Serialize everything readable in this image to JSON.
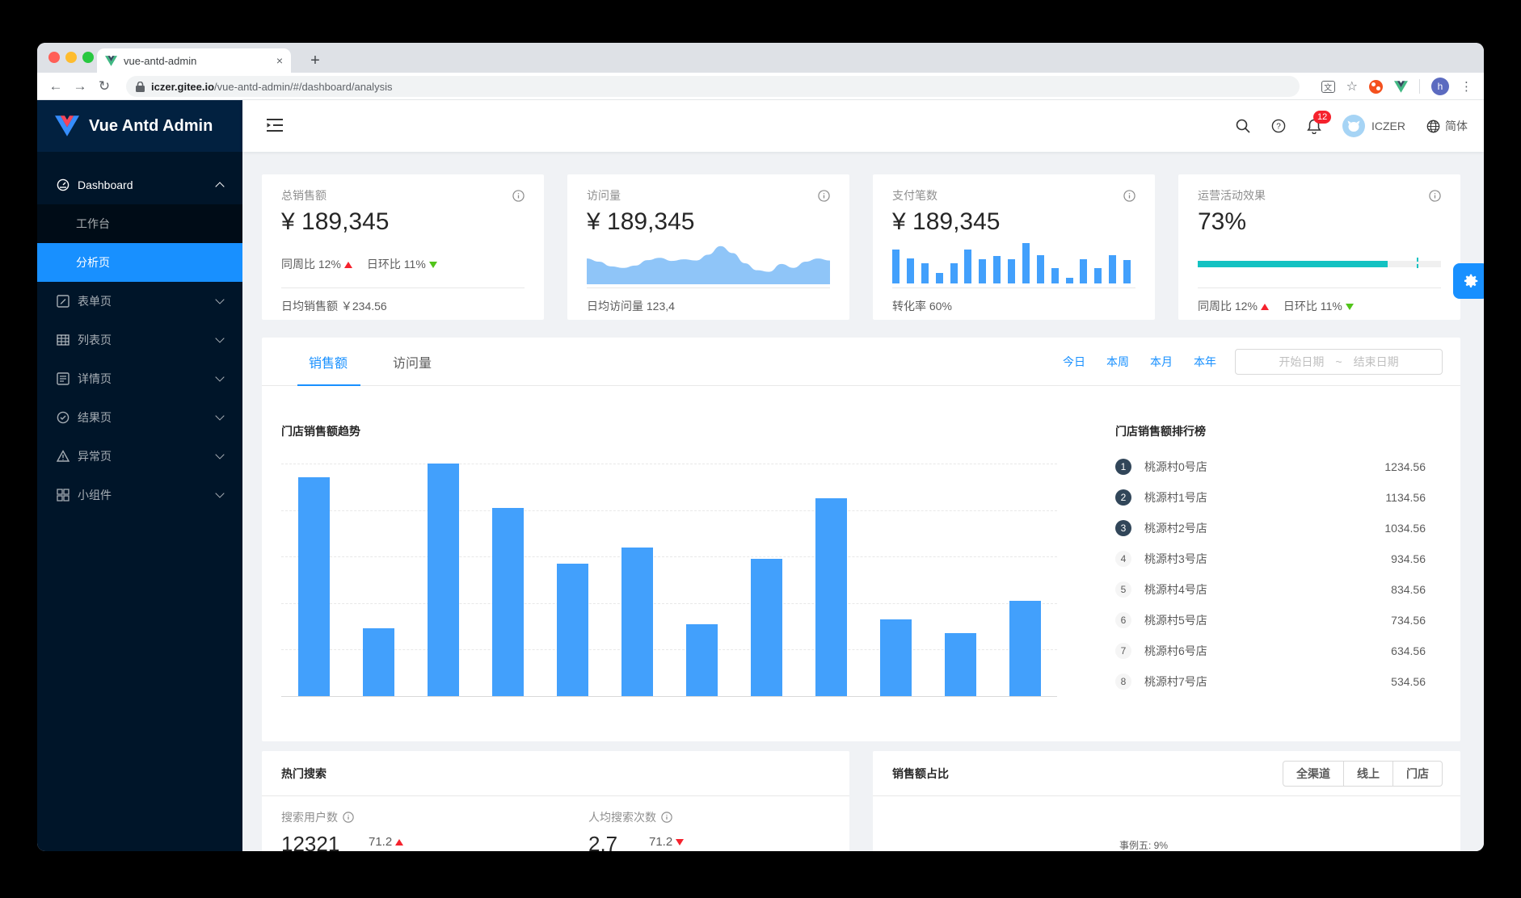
{
  "colors": {
    "accent": "#1890ff",
    "bar_blue": "#42a0fc",
    "area_blue": "#8fc5f8",
    "teal": "#13c2c2",
    "red": "#f5222d",
    "green": "#52c41a",
    "sidebar_bg": "#001529",
    "rank_badge_dark": "#314659"
  },
  "browser": {
    "tab_title": "vue-antd-admin",
    "tab_close": "×",
    "new_tab": "+",
    "nav_back": "←",
    "nav_forward": "→",
    "nav_reload": "↻",
    "url_host": "iczer.gitee.io",
    "url_path": "/vue-antd-admin/#/dashboard/analysis",
    "bookmark_star": "☆",
    "translate_glyph": "文",
    "profile_initial": "h",
    "menu_dots": "⋮"
  },
  "app_header": {
    "logo_text": "Vue Antd Admin",
    "notification_count": "12",
    "username": "ICZER",
    "language": "简体"
  },
  "sidebar": {
    "dashboard": {
      "label": "Dashboard"
    },
    "children": [
      {
        "label": "工作台"
      },
      {
        "label": "分析页"
      }
    ],
    "items": [
      {
        "label": "表单页"
      },
      {
        "label": "列表页"
      },
      {
        "label": "详情页"
      },
      {
        "label": "结果页"
      },
      {
        "label": "异常页"
      },
      {
        "label": "小组件"
      }
    ]
  },
  "stat_cards": [
    {
      "title": "总销售额",
      "value": "¥ 189,345",
      "wow_label": "同周比 12%",
      "dod_label": "日环比 11%",
      "footer": "日均销售额 ￥234.56"
    },
    {
      "title": "访问量",
      "value": "¥ 189,345",
      "footer": "日均访问量 123,4"
    },
    {
      "title": "支付笔数",
      "value": "¥ 189,345",
      "footer": "转化率 60%"
    },
    {
      "title": "运营活动效果",
      "value": "73%",
      "wow_label": "同周比 12%",
      "dod_label": "日环比 11%",
      "progress": {
        "fill_percent": 78,
        "target_percent": 90
      }
    }
  ],
  "main": {
    "tabs": [
      {
        "label": "销售额",
        "active": true
      },
      {
        "label": "访问量",
        "active": false
      }
    ],
    "quick_ranges": [
      "今日",
      "本周",
      "本月",
      "本年"
    ],
    "date_picker": {
      "start_placeholder": "开始日期",
      "separator": "~",
      "end_placeholder": "结束日期"
    },
    "trend_title": "门店销售额趋势",
    "ranking": {
      "title": "门店销售额排行榜",
      "items": [
        {
          "rank": "1",
          "name": "桃源村0号店",
          "value": "1234.56"
        },
        {
          "rank": "2",
          "name": "桃源村1号店",
          "value": "1134.56"
        },
        {
          "rank": "3",
          "name": "桃源村2号店",
          "value": "1034.56"
        },
        {
          "rank": "4",
          "name": "桃源村3号店",
          "value": "934.56"
        },
        {
          "rank": "5",
          "name": "桃源村4号店",
          "value": "834.56"
        },
        {
          "rank": "6",
          "name": "桃源村5号店",
          "value": "734.56"
        },
        {
          "rank": "7",
          "name": "桃源村6号店",
          "value": "634.56"
        },
        {
          "rank": "8",
          "name": "桃源村7号店",
          "value": "534.56"
        }
      ]
    }
  },
  "bottom": {
    "hot_search": {
      "title": "热门搜索",
      "stats": [
        {
          "label": "搜索用户数",
          "value": "12321",
          "trend": "71.2",
          "trend_dir": "up"
        },
        {
          "label": "人均搜索次数",
          "value": "2.7",
          "trend": "71.2",
          "trend_dir": "down"
        }
      ]
    },
    "sales_share": {
      "title": "销售额占比",
      "channels": [
        "全渠道",
        "线上",
        "门店"
      ],
      "partial_legend": "事例五: 9%"
    }
  },
  "chart_data": [
    {
      "id": "visits-mini-area",
      "type": "area",
      "series_name": "访问量",
      "values": [
        60,
        52,
        40,
        36,
        42,
        56,
        62,
        54,
        58,
        55,
        70,
        92,
        74,
        48,
        30,
        26,
        46,
        36,
        52,
        60,
        55
      ],
      "ylim": [
        0,
        100
      ],
      "x_labels_visible": false,
      "color": "#8fc5f8"
    },
    {
      "id": "payments-mini-bar",
      "type": "bar",
      "series_name": "支付笔数",
      "values": [
        85,
        62,
        50,
        27,
        50,
        85,
        60,
        68,
        60,
        100,
        70,
        38,
        15,
        60,
        38,
        70,
        58
      ],
      "ylim": [
        0,
        100
      ],
      "x_labels_visible": false,
      "color": "#42a0fc"
    },
    {
      "id": "store-sales-trend",
      "type": "bar",
      "title": "门店销售额趋势",
      "series_name": "销售额",
      "values": [
        940,
        290,
        1000,
        810,
        570,
        640,
        310,
        590,
        850,
        330,
        270,
        410
      ],
      "ylim": [
        0,
        1000
      ],
      "gridlines": "dashed-horizontal-5",
      "x_labels_visible": false,
      "color": "#42a0fc"
    }
  ]
}
